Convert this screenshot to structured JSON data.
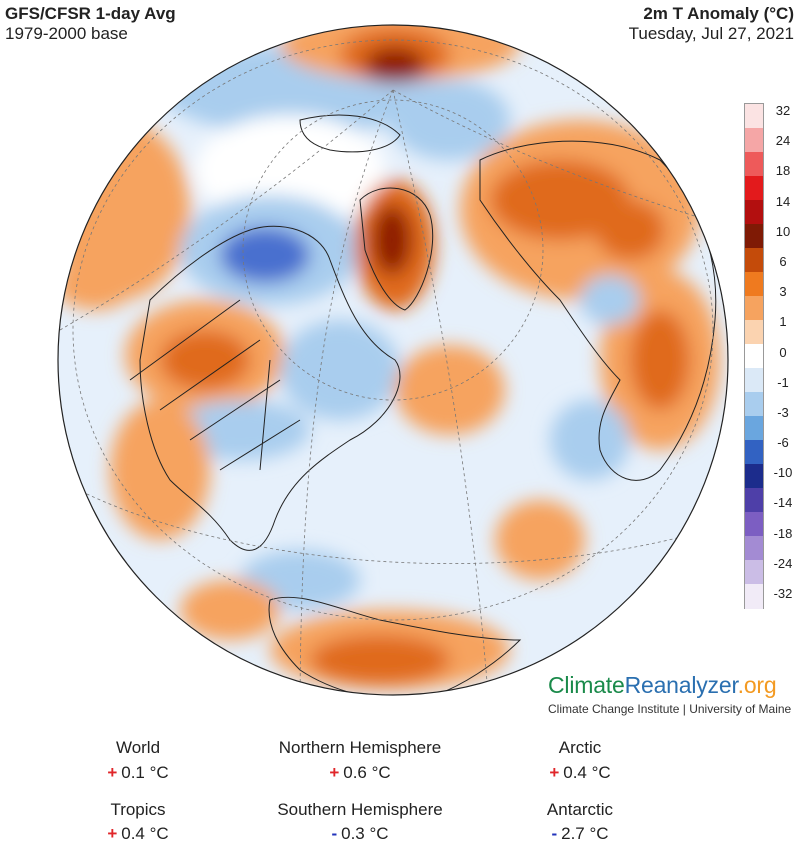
{
  "header": {
    "model": "GFS/CFSR 1-day Avg",
    "base": "1979-2000 base",
    "variable": "2m T Anomaly (°C)",
    "date": "Tuesday, Jul 27, 2021"
  },
  "legend": {
    "labels": [
      "32",
      "24",
      "18",
      "14",
      "10",
      "6",
      "3",
      "1",
      "0",
      "-1",
      "-3",
      "-6",
      "-10",
      "-14",
      "-18",
      "-24",
      "-32"
    ],
    "colors": [
      "#fbe3e3",
      "#f5a6a6",
      "#ee5a5a",
      "#e31a1c",
      "#b30f0f",
      "#7f1a05",
      "#c44b0a",
      "#ef7a1f",
      "#f6a35f",
      "#fbd3b0",
      "#ffffff",
      "#dbe9f7",
      "#a9cdee",
      "#6aa6df",
      "#3262c2",
      "#1c2c8c",
      "#4e3fa8",
      "#7c5ec2",
      "#a38bd3",
      "#cbbde6",
      "#f1ebf7"
    ]
  },
  "map": {
    "colors": {
      "ocean_warm": "#fde6d2",
      "ocean_cool": "#e6f0fb",
      "warm": "#f6a35f",
      "hot": "#e06a1a",
      "very_hot": "#8f1e05",
      "cool": "#a9cdee",
      "cold": "#4a6fcf",
      "white": "#ffffff",
      "border": "#222222",
      "grid": "#777777"
    }
  },
  "brand": {
    "part1": "Climate",
    "part2": "Reanalyzer",
    "part3": ".org",
    "institute": "Climate Change Institute | University of Maine"
  },
  "stats": [
    {
      "name": "World",
      "sign": "+",
      "value": "0.1 °C"
    },
    {
      "name": "Northern Hemisphere",
      "sign": "+",
      "value": "0.6 °C"
    },
    {
      "name": "Arctic",
      "sign": "+",
      "value": "0.4 °C"
    },
    {
      "name": "Tropics",
      "sign": "+",
      "value": "0.4 °C"
    },
    {
      "name": "Southern Hemisphere",
      "sign": "-",
      "value": "0.3 °C"
    },
    {
      "name": "Antarctic",
      "sign": "-",
      "value": "2.7 °C"
    }
  ]
}
